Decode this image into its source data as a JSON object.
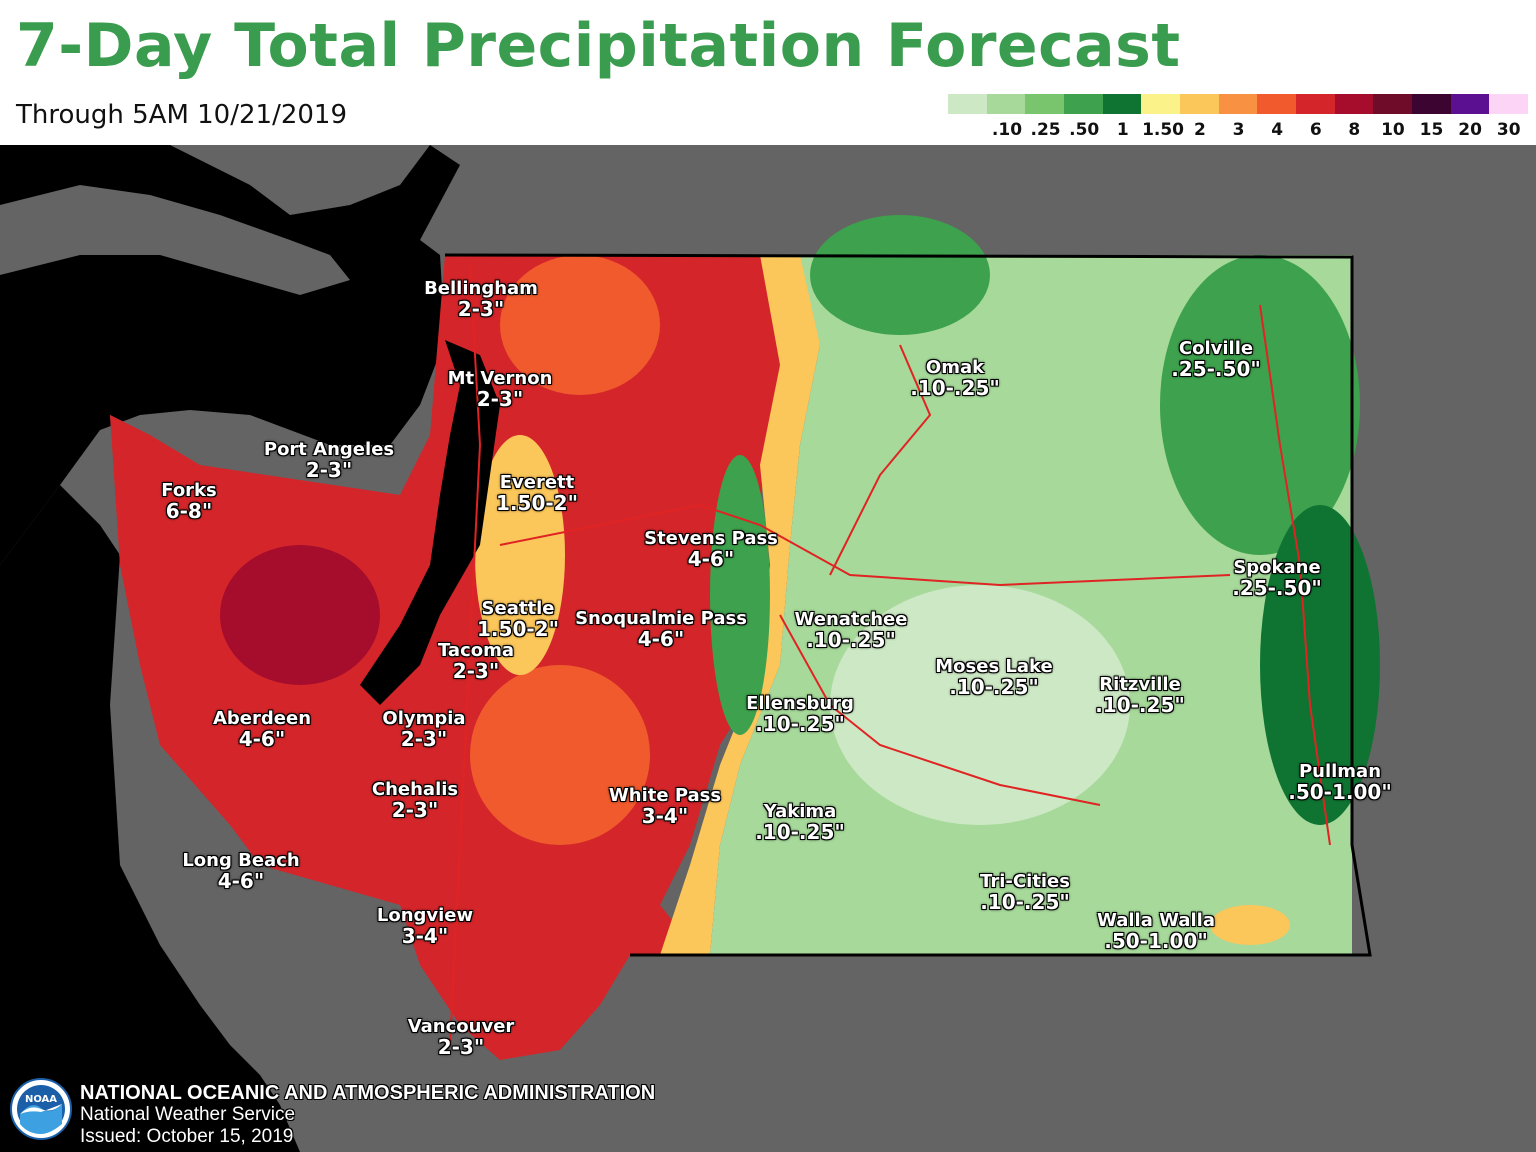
{
  "header": {
    "title": "7-Day Total Precipitation Forecast",
    "subtitle": "Through 5AM 10/21/2019"
  },
  "legend": {
    "labels": [
      ".10",
      ".25",
      ".50",
      "1",
      "1.50",
      "2",
      "3",
      "4",
      "6",
      "8",
      "10",
      "15",
      "20",
      "30"
    ],
    "colors": [
      "#cde8c4",
      "#a6d99a",
      "#79c56d",
      "#3ea14d",
      "#0f7432",
      "#fbf38a",
      "#fbc65a",
      "#f99142",
      "#f05a2c",
      "#d4262a",
      "#a60c2c",
      "#6e0c2a",
      "#3c0430",
      "#5a1090",
      "#fbd4f6"
    ]
  },
  "map": {
    "colors": {
      "background": "#646464",
      "water": "#000000",
      "border": "#000000",
      "road": "#e02323"
    },
    "cities": [
      {
        "name": "Bellingham",
        "range": "2-3\""
      },
      {
        "name": "Mt Vernon",
        "range": "2-3\""
      },
      {
        "name": "Port Angeles",
        "range": "2-3\""
      },
      {
        "name": "Forks",
        "range": "6-8\""
      },
      {
        "name": "Everett",
        "range": "1.50-2\""
      },
      {
        "name": "Stevens Pass",
        "range": "4-6\""
      },
      {
        "name": "Seattle",
        "range": "1.50-2\""
      },
      {
        "name": "Snoqualmie Pass",
        "range": "4-6\""
      },
      {
        "name": "Tacoma",
        "range": "2-3\""
      },
      {
        "name": "Olympia",
        "range": "2-3\""
      },
      {
        "name": "Aberdeen",
        "range": "4-6\""
      },
      {
        "name": "Chehalis",
        "range": "2-3\""
      },
      {
        "name": "Long Beach",
        "range": "4-6\""
      },
      {
        "name": "Longview",
        "range": "3-4\""
      },
      {
        "name": "Vancouver",
        "range": "2-3\""
      },
      {
        "name": "White Pass",
        "range": "3-4\""
      },
      {
        "name": "Wenatchee",
        "range": ".10-.25\""
      },
      {
        "name": "Ellensburg",
        "range": ".10-.25\""
      },
      {
        "name": "Yakima",
        "range": ".10-.25\""
      },
      {
        "name": "Omak",
        "range": ".10-.25\""
      },
      {
        "name": "Moses Lake",
        "range": ".10-.25\""
      },
      {
        "name": "Tri-Cities",
        "range": ".10-.25\""
      },
      {
        "name": "Colville",
        "range": ".25-.50\""
      },
      {
        "name": "Spokane",
        "range": ".25-.50\""
      },
      {
        "name": "Ritzville",
        "range": ".10-.25\""
      },
      {
        "name": "Pullman",
        "range": ".50-1.00\""
      },
      {
        "name": "Walla Walla",
        "range": ".50-1.00\""
      }
    ]
  },
  "footer": {
    "logo_label": "NOAA",
    "agency": "NATIONAL OCEANIC AND ATMOSPHERIC ADMINISTRATION",
    "service": "National Weather Service",
    "issued": "Issued: October 15, 2019"
  }
}
